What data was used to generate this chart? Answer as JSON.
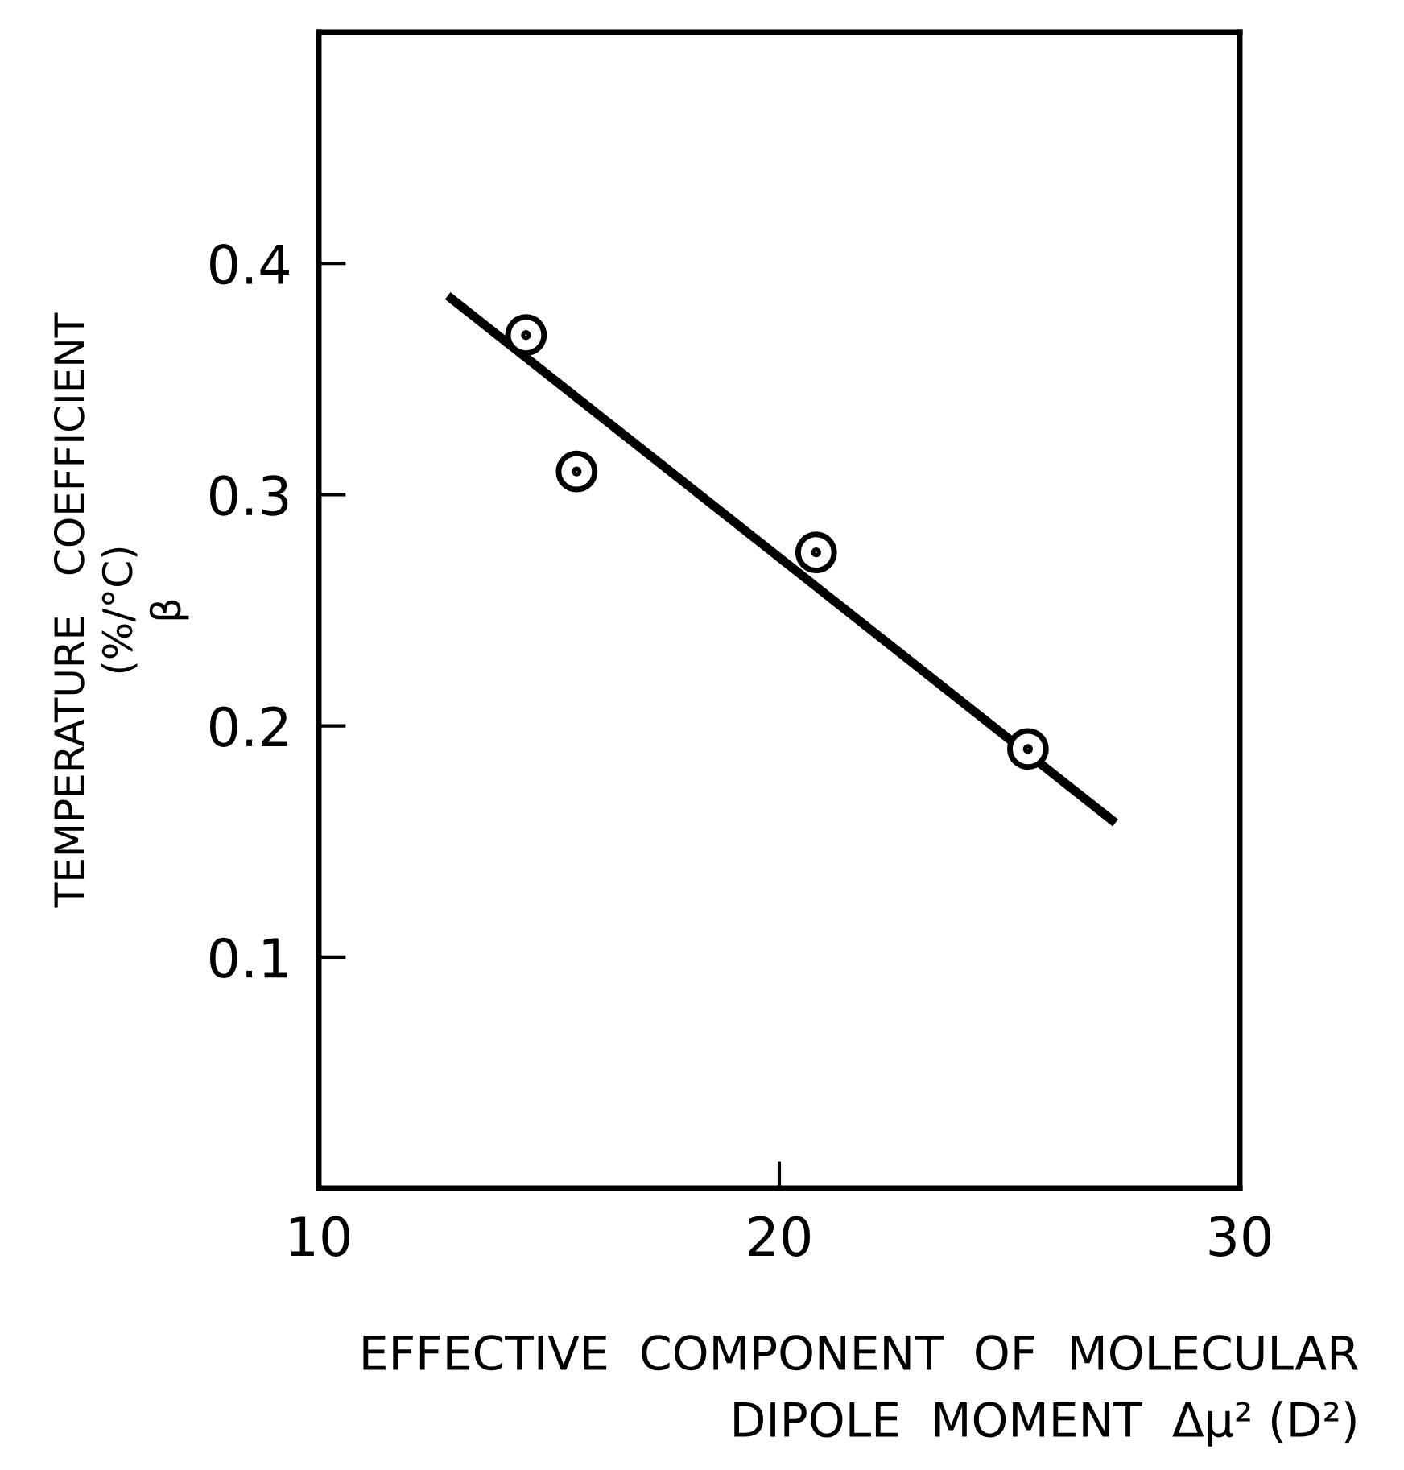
{
  "chart_data": {
    "type": "scatter",
    "xlabel": "EFFECTIVE  COMPONENT  OF  MOLECULAR\nDIPOLE  MOMENT  Δμ² (D²)",
    "ylabel": "TEMPERATURE   COEFFICIENT\n(%/°C)\nβ",
    "series": [
      {
        "color": "#000000",
        "x": [
          14.5,
          15.6,
          20.8,
          25.4
        ],
        "values": [
          0.369,
          0.31,
          0.275,
          0.19
        ],
        "marker": "circle"
      },
      {
        "type": "line",
        "color": "#000000",
        "x": [
          12.8,
          27.3
        ],
        "values": [
          0.386,
          0.158
        ],
        "marker": "none",
        "line_style": "solid"
      }
    ],
    "xlim": [
      10,
      30
    ],
    "xticks": [
      10,
      20,
      30
    ],
    "ylim": [
      0,
      0.5
    ],
    "yticks": [
      0.1,
      0.2,
      0.3,
      0.4
    ],
    "grid": false,
    "legend": false
  }
}
